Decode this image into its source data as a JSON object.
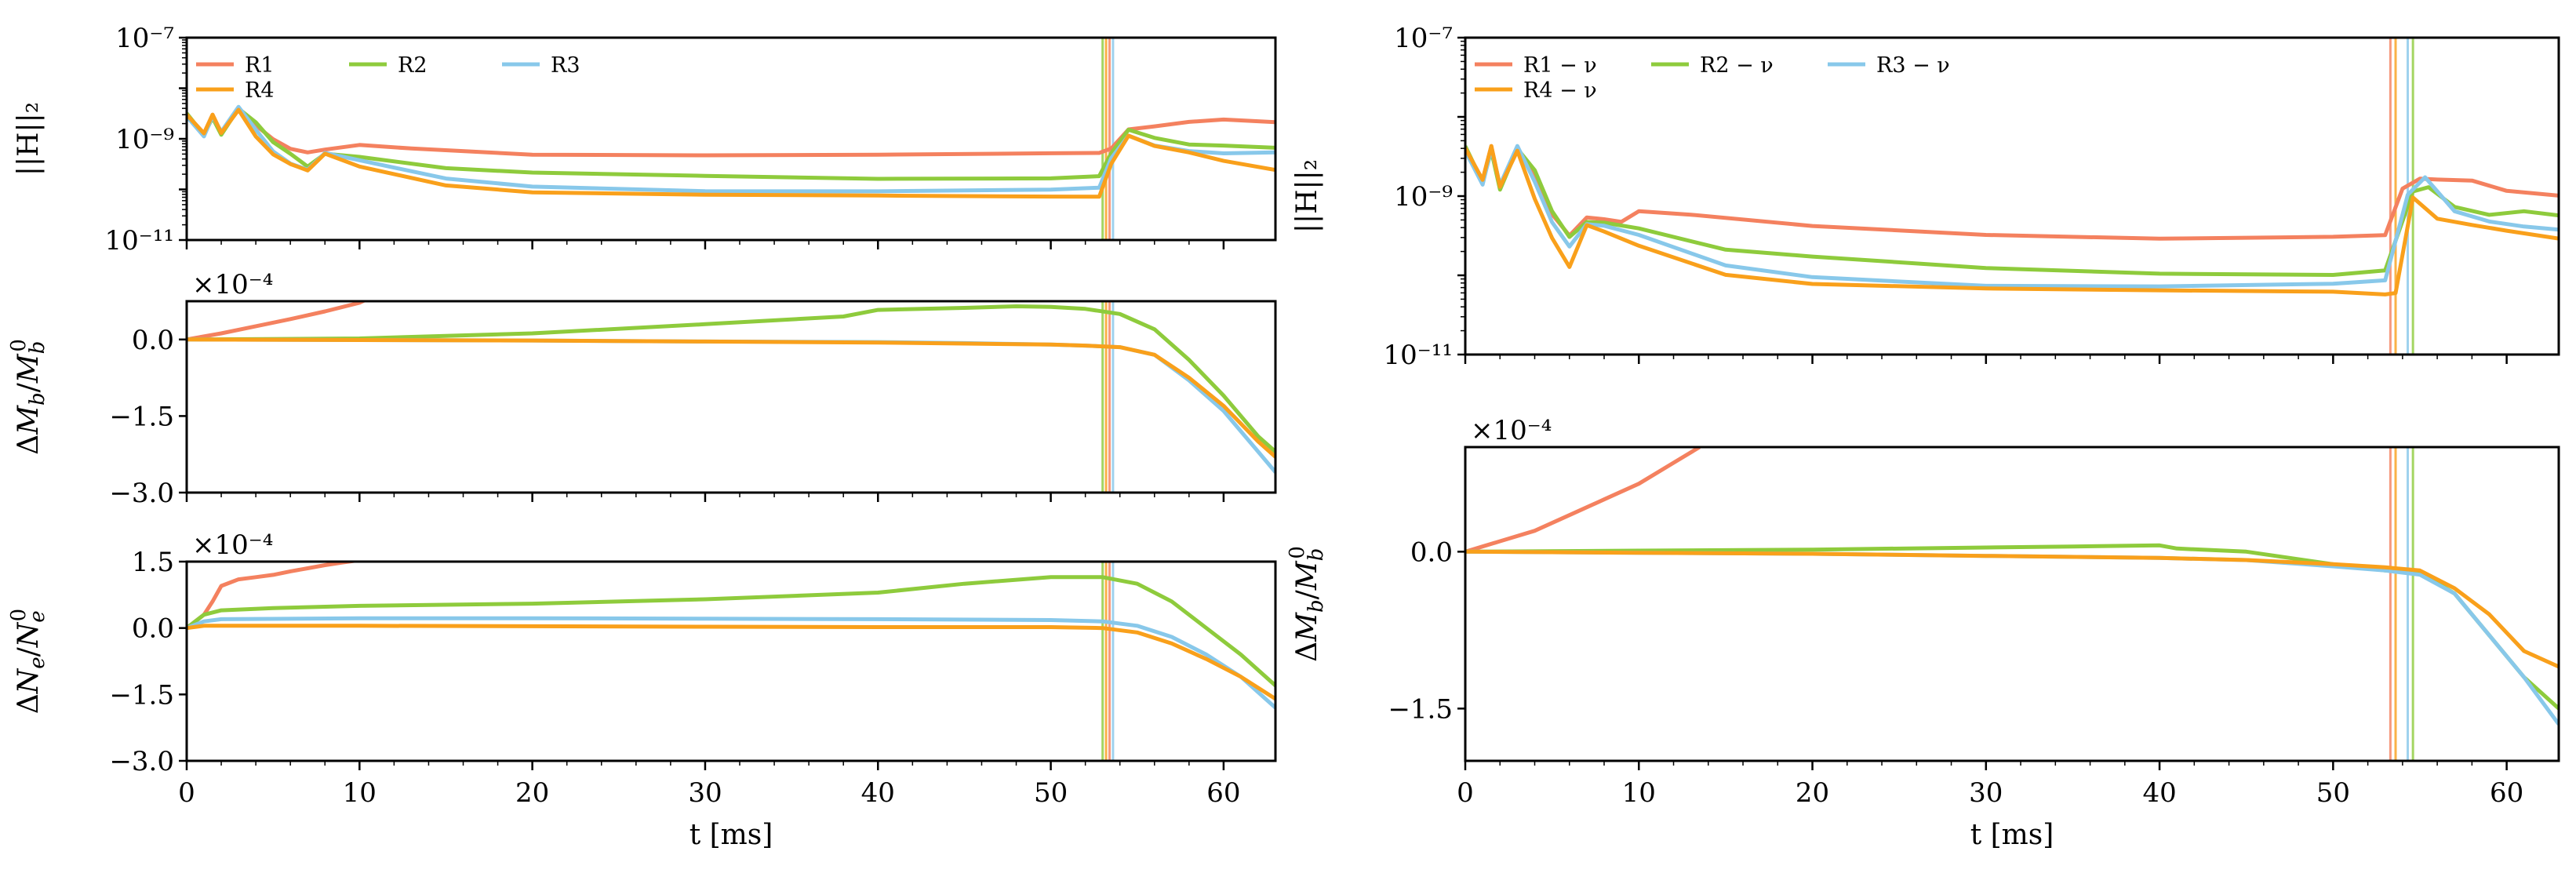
{
  "chart_data": [
    {
      "id": "left_top",
      "type": "line",
      "yscale": "log",
      "ylabel": "||H||₂",
      "xlim": [
        0,
        63
      ],
      "ylim": [
        1e-11,
        1e-07
      ],
      "ytick_labels": [
        "10⁻⁷",
        "10⁻⁹",
        "10⁻¹¹"
      ],
      "ytick_values": [
        1e-07,
        1e-09,
        1e-11
      ],
      "vlines": [
        {
          "x": 53.0,
          "color": "#8ecb3c"
        },
        {
          "x": 53.2,
          "color": "#f9a01b"
        },
        {
          "x": 53.4,
          "color": "#f4815f"
        },
        {
          "x": 53.6,
          "color": "#88c8ea"
        }
      ],
      "legend": {
        "location": "top-left",
        "columns": 3
      },
      "series": [
        {
          "name": "R1",
          "color": "#f4815f",
          "x": [
            0,
            1,
            1.5,
            2,
            3,
            4,
            5,
            6,
            7,
            8,
            10,
            13,
            20,
            30,
            40,
            50,
            52.8,
            53.5,
            54.5,
            56,
            58,
            60,
            63
          ],
          "y": [
            3e-09,
            1.2e-09,
            2.8e-09,
            1.3e-09,
            4e-09,
            2e-09,
            1e-09,
            6e-10,
            5e-10,
            6e-10,
            8e-10,
            7e-10,
            5e-10,
            4.5e-10,
            4.5e-10,
            5e-10,
            5.5e-10,
            7e-10,
            1.6e-09,
            1.7e-09,
            2e-09,
            2.3e-09,
            2.2e-09
          ]
        },
        {
          "name": "R2",
          "color": "#8ecb3c",
          "x": [
            0,
            1,
            1.5,
            2,
            3,
            4,
            5,
            6,
            7,
            8,
            10,
            15,
            20,
            30,
            40,
            50,
            52.8,
            53.5,
            54.5,
            56,
            58,
            60,
            63
          ],
          "y": [
            3e-09,
            1.2e-09,
            2.8e-09,
            1.3e-09,
            4e-09,
            2e-09,
            8e-10,
            5e-10,
            3e-10,
            5.5e-10,
            4.5e-10,
            2.5e-10,
            2e-10,
            1.8e-10,
            1.7e-10,
            1.8e-10,
            1.9e-10,
            5e-10,
            1.4e-09,
            1e-09,
            8e-10,
            8e-10,
            7e-10
          ]
        },
        {
          "name": "R3",
          "color": "#88c8ea",
          "x": [
            0,
            1,
            1.5,
            2,
            3,
            4,
            5,
            6,
            7,
            8,
            10,
            15,
            20,
            30,
            40,
            50,
            52.8,
            53.5,
            54.5,
            56,
            58,
            60,
            63
          ],
          "y": [
            3e-09,
            1.2e-09,
            2.8e-09,
            1.3e-09,
            4e-09,
            1.5e-09,
            6e-10,
            3.5e-10,
            2.5e-10,
            5e-10,
            3.5e-10,
            1.6e-10,
            1.2e-10,
            1e-10,
            9.5e-11,
            9.5e-11,
            1e-10,
            4e-10,
            1.2e-09,
            8e-10,
            6e-10,
            5e-10,
            5e-10
          ]
        },
        {
          "name": "R4",
          "color": "#f9a01b",
          "x": [
            0,
            1,
            1.5,
            2,
            3,
            4,
            5,
            6,
            7,
            8,
            10,
            15,
            20,
            30,
            40,
            50,
            52.8,
            53.5,
            54.5,
            56,
            58,
            60,
            63
          ],
          "y": [
            3e-09,
            1.2e-09,
            2.8e-09,
            1.3e-09,
            4e-09,
            1.2e-09,
            5e-10,
            3e-10,
            2.2e-10,
            5e-10,
            3e-10,
            1.3e-10,
            9e-11,
            7.5e-11,
            7e-11,
            7e-11,
            7.5e-11,
            3.5e-10,
            1.2e-09,
            7e-10,
            5e-10,
            3.5e-10,
            2.5e-10
          ]
        }
      ]
    },
    {
      "id": "left_mid",
      "type": "line",
      "ylabel": "ΔM_b/M_b^0",
      "multiplier": "×10⁻⁴",
      "xlim": [
        0,
        63
      ],
      "ylim": [
        -3.0,
        0.75
      ],
      "ytick_values": [
        0.0,
        -1.5,
        -3.0
      ],
      "ytick_labels": [
        "0.0",
        "−1.5",
        "−3.0"
      ],
      "vlines": [
        {
          "x": 53.0,
          "color": "#8ecb3c"
        },
        {
          "x": 53.2,
          "color": "#f9a01b"
        },
        {
          "x": 53.4,
          "color": "#f4815f"
        },
        {
          "x": 53.6,
          "color": "#88c8ea"
        }
      ],
      "series": [
        {
          "name": "R1",
          "color": "#f4815f",
          "x": [
            0,
            2,
            4,
            6,
            8,
            10,
            10.5
          ],
          "y": [
            0,
            0.12,
            0.26,
            0.4,
            0.55,
            0.72,
            0.8
          ]
        },
        {
          "name": "R2",
          "color": "#8ecb3c",
          "x": [
            0,
            10,
            20,
            30,
            38,
            40,
            45,
            48,
            50,
            52,
            54,
            56,
            58,
            60,
            62,
            63
          ],
          "y": [
            0,
            0.02,
            0.12,
            0.3,
            0.45,
            0.58,
            0.62,
            0.65,
            0.64,
            0.6,
            0.5,
            0.2,
            -0.4,
            -1.1,
            -1.9,
            -2.2
          ]
        },
        {
          "name": "R3",
          "color": "#88c8ea",
          "x": [
            0,
            10,
            20,
            30,
            40,
            45,
            50,
            52,
            54,
            56,
            58,
            60,
            62,
            63
          ],
          "y": [
            0,
            -0.01,
            -0.02,
            -0.04,
            -0.05,
            -0.07,
            -0.1,
            -0.12,
            -0.15,
            -0.3,
            -0.8,
            -1.4,
            -2.2,
            -2.6
          ]
        },
        {
          "name": "R4",
          "color": "#f9a01b",
          "x": [
            0,
            10,
            20,
            30,
            40,
            45,
            50,
            52,
            54,
            56,
            58,
            60,
            62,
            63
          ],
          "y": [
            0,
            -0.01,
            -0.02,
            -0.04,
            -0.06,
            -0.08,
            -0.1,
            -0.12,
            -0.15,
            -0.3,
            -0.75,
            -1.3,
            -2.0,
            -2.3
          ]
        }
      ]
    },
    {
      "id": "left_bottom",
      "type": "line",
      "ylabel": "ΔN_e/N_e^0",
      "multiplier": "×10⁻⁴",
      "xlim": [
        0,
        63
      ],
      "ylim": [
        -3.0,
        1.5
      ],
      "ytick_values": [
        1.5,
        0.0,
        -1.5,
        -3.0
      ],
      "ytick_labels": [
        "1.5",
        "0.0",
        "−1.5",
        "−3.0"
      ],
      "vlines": [
        {
          "x": 53.0,
          "color": "#8ecb3c"
        },
        {
          "x": 53.2,
          "color": "#f9a01b"
        },
        {
          "x": 53.4,
          "color": "#f4815f"
        },
        {
          "x": 53.6,
          "color": "#88c8ea"
        }
      ],
      "series": [
        {
          "name": "R1",
          "color": "#f4815f",
          "x": [
            0,
            1,
            1.5,
            2,
            3,
            4,
            5,
            6,
            7,
            8,
            9,
            10.3
          ],
          "y": [
            0,
            0.3,
            0.6,
            0.95,
            1.1,
            1.15,
            1.2,
            1.28,
            1.35,
            1.42,
            1.48,
            1.55
          ]
        },
        {
          "name": "R2",
          "color": "#8ecb3c",
          "x": [
            0,
            1,
            2,
            5,
            10,
            20,
            30,
            40,
            45,
            50,
            53,
            55,
            57,
            59,
            61,
            63
          ],
          "y": [
            0,
            0.3,
            0.4,
            0.45,
            0.5,
            0.55,
            0.65,
            0.8,
            1.0,
            1.15,
            1.15,
            1.0,
            0.6,
            0.0,
            -0.6,
            -1.3
          ]
        },
        {
          "name": "R3",
          "color": "#88c8ea",
          "x": [
            0,
            1,
            2,
            10,
            20,
            30,
            40,
            50,
            53,
            55,
            57,
            59,
            61,
            63
          ],
          "y": [
            0,
            0.15,
            0.2,
            0.22,
            0.22,
            0.21,
            0.2,
            0.18,
            0.15,
            0.05,
            -0.2,
            -0.6,
            -1.1,
            -1.8
          ]
        },
        {
          "name": "R4",
          "color": "#f9a01b",
          "x": [
            0,
            1,
            2,
            10,
            20,
            30,
            40,
            50,
            53,
            55,
            57,
            59,
            61,
            63
          ],
          "y": [
            0,
            0.05,
            0.05,
            0.05,
            0.04,
            0.03,
            0.02,
            0.02,
            0.0,
            -0.1,
            -0.35,
            -0.7,
            -1.1,
            -1.6
          ]
        }
      ]
    },
    {
      "id": "right_top",
      "type": "line",
      "yscale": "log",
      "ylabel": "||H||₂",
      "xlim": [
        0,
        63
      ],
      "ylim": [
        1e-11,
        1e-07
      ],
      "ytick_labels": [
        "10⁻⁷",
        "10⁻⁹",
        "10⁻¹¹"
      ],
      "ytick_values": [
        1e-07,
        1e-09,
        1e-11
      ],
      "vlines": [
        {
          "x": 53.3,
          "color": "#f4815f"
        },
        {
          "x": 53.6,
          "color": "#f9a01b"
        },
        {
          "x": 54.3,
          "color": "#88c8ea"
        },
        {
          "x": 54.6,
          "color": "#8ecb3c"
        }
      ],
      "legend": {
        "location": "top-left",
        "columns": 3
      },
      "series": [
        {
          "name": "R1 − ν",
          "color": "#f4815f",
          "x": [
            0,
            1,
            1.5,
            2,
            3,
            4,
            5,
            6,
            7,
            8,
            9,
            10,
            13,
            20,
            30,
            40,
            50,
            53,
            54,
            55,
            56,
            58,
            60,
            63
          ],
          "y": [
            4e-09,
            1.5e-09,
            4e-09,
            1.3e-09,
            4e-09,
            2e-09,
            6e-10,
            3e-10,
            5e-10,
            5e-10,
            5e-10,
            7e-10,
            6e-10,
            4e-10,
            3e-10,
            2.8e-10,
            3.2e-10,
            3.5e-10,
            1.3e-09,
            1.6e-09,
            1.5e-09,
            1.5e-09,
            1.2e-09,
            1.1e-09
          ]
        },
        {
          "name": "R2 − ν",
          "color": "#8ecb3c",
          "x": [
            0,
            1,
            1.5,
            2,
            3,
            4,
            5,
            6,
            7,
            8,
            10,
            15,
            20,
            30,
            40,
            50,
            53,
            54.6,
            55.5,
            57,
            59,
            61,
            63
          ],
          "y": [
            4e-09,
            1.5e-09,
            4e-09,
            1.3e-09,
            4e-09,
            2e-09,
            6e-10,
            3e-10,
            5e-10,
            5e-10,
            4e-10,
            2e-10,
            1.6e-10,
            1.2e-10,
            1.1e-10,
            1.1e-10,
            1.2e-10,
            1.1e-09,
            1.2e-09,
            7e-10,
            6e-10,
            7e-10,
            6e-10
          ]
        },
        {
          "name": "R3 − ν",
          "color": "#88c8ea",
          "x": [
            0,
            1,
            1.5,
            2,
            3,
            4,
            5,
            6,
            7,
            8,
            10,
            15,
            20,
            30,
            40,
            50,
            53,
            54.3,
            55.3,
            57,
            59,
            61,
            63
          ],
          "y": [
            4e-09,
            1.5e-09,
            4e-09,
            1.3e-09,
            4e-09,
            1.5e-09,
            5e-10,
            2.5e-10,
            4.5e-10,
            4e-10,
            3e-10,
            1.3e-10,
            1e-10,
            8e-11,
            7.5e-11,
            7.5e-11,
            8e-11,
            1e-09,
            1.8e-09,
            7e-10,
            5e-10,
            4e-10,
            3.5e-10
          ]
        },
        {
          "name": "R4 − ν",
          "color": "#f9a01b",
          "x": [
            0,
            1,
            1.5,
            2,
            3,
            4,
            5,
            6,
            7,
            8,
            10,
            15,
            20,
            30,
            40,
            50,
            53,
            53.6,
            54.6,
            56,
            58,
            60,
            63
          ],
          "y": [
            4e-09,
            1.5e-09,
            4e-09,
            1.3e-09,
            4e-09,
            1e-09,
            3e-10,
            1.2e-10,
            4e-10,
            3.5e-10,
            2.5e-10,
            1.1e-10,
            8e-11,
            6.5e-11,
            6e-11,
            6e-11,
            6e-11,
            6.5e-11,
            1e-09,
            5e-10,
            4e-10,
            3.5e-10,
            3e-10
          ]
        }
      ]
    },
    {
      "id": "right_bottom",
      "type": "line",
      "ylabel": "ΔM_b/M_b^0",
      "multiplier": "×10⁻⁴",
      "xlabel": "t [ms]",
      "xlim": [
        0,
        63
      ],
      "ylim": [
        -2.0,
        1.0
      ],
      "ytick_values": [
        0.0,
        -1.5
      ],
      "ytick_labels": [
        "0.0",
        "−1.5"
      ],
      "xtick_values": [
        0,
        10,
        20,
        30,
        40,
        50,
        60
      ],
      "xtick_labels": [
        "0",
        "10",
        "20",
        "30",
        "40",
        "50",
        "60"
      ],
      "vlines": [
        {
          "x": 53.3,
          "color": "#f4815f"
        },
        {
          "x": 53.6,
          "color": "#f9a01b"
        },
        {
          "x": 54.3,
          "color": "#88c8ea"
        },
        {
          "x": 54.6,
          "color": "#8ecb3c"
        }
      ],
      "series": [
        {
          "name": "R1 − ν",
          "color": "#f4815f",
          "x": [
            0,
            1,
            2,
            4,
            6,
            8,
            10,
            12,
            13.5
          ],
          "y": [
            0,
            0.05,
            0.1,
            0.2,
            0.35,
            0.5,
            0.65,
            0.85,
            1.0
          ]
        },
        {
          "name": "R2 − ν",
          "color": "#8ecb3c",
          "x": [
            0,
            10,
            20,
            30,
            35,
            40,
            41,
            45,
            50,
            53,
            55,
            57,
            59,
            61,
            63
          ],
          "y": [
            0,
            0.01,
            0.02,
            0.04,
            0.05,
            0.06,
            0.03,
            0.0,
            -0.12,
            -0.18,
            -0.2,
            -0.4,
            -0.8,
            -1.2,
            -1.5
          ]
        },
        {
          "name": "R3 − ν",
          "color": "#88c8ea",
          "x": [
            0,
            10,
            20,
            30,
            40,
            45,
            50,
            53,
            55,
            57,
            59,
            61,
            63
          ],
          "y": [
            0,
            -0.01,
            -0.02,
            -0.04,
            -0.06,
            -0.08,
            -0.14,
            -0.18,
            -0.22,
            -0.4,
            -0.8,
            -1.2,
            -1.65
          ]
        },
        {
          "name": "R4 − ν",
          "color": "#f9a01b",
          "x": [
            0,
            10,
            20,
            30,
            40,
            45,
            50,
            53,
            55,
            57,
            59,
            61,
            63
          ],
          "y": [
            0,
            -0.01,
            -0.02,
            -0.04,
            -0.06,
            -0.08,
            -0.12,
            -0.15,
            -0.18,
            -0.35,
            -0.6,
            -0.95,
            -1.1
          ]
        }
      ]
    }
  ],
  "xlabel": "t [ms]",
  "xtick_labels": [
    "0",
    "10",
    "20",
    "30",
    "40",
    "50",
    "60"
  ],
  "xtick_values": [
    0,
    10,
    20,
    30,
    40,
    50,
    60
  ]
}
